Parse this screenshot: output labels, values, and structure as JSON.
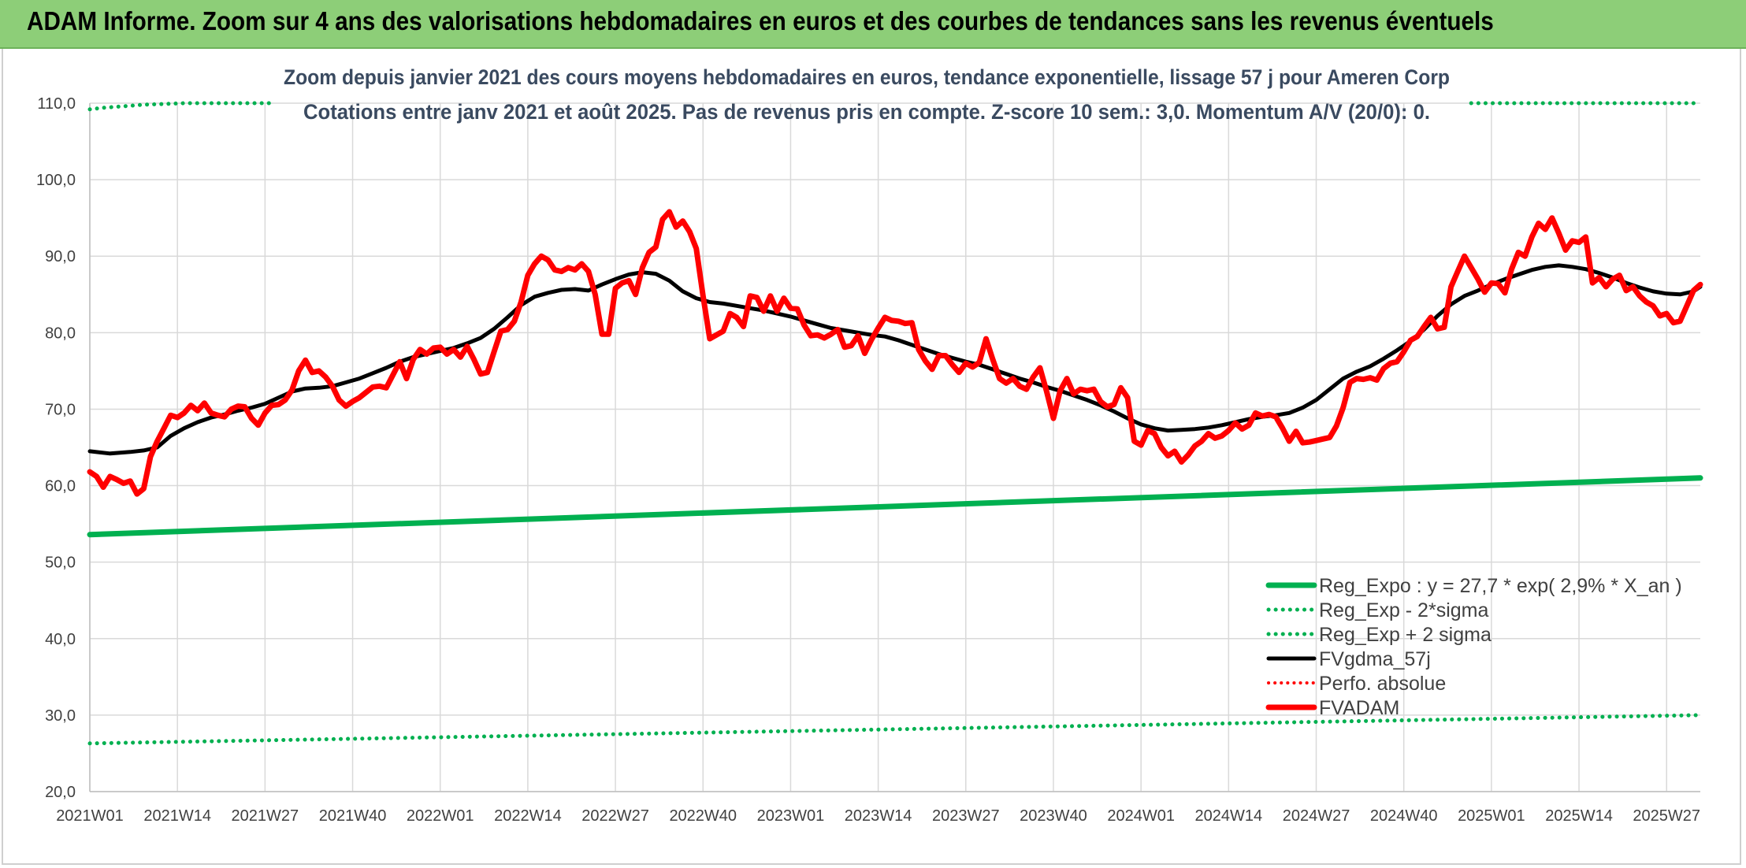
{
  "header": {
    "title": "ADAM Informe. Zoom sur 4 ans des valorisations hebdomadaires en euros et des courbes de tendances sans les revenus éventuels"
  },
  "chart_data": {
    "type": "line",
    "title": "Zoom depuis janvier 2021 des cours moyens hebdomadaires en euros, tendance exponentielle, lissage 57 j pour Ameren Corp",
    "subtitle": "Cotations entre janv 2021 et août 2025. Pas de revenus pris en compte. Z-score 10 sem.: 3,0. Momentum A/V (20/0): 0.",
    "x_tick_labels": [
      "2021W01",
      "2021W14",
      "2021W27",
      "2021W40",
      "2022W01",
      "2022W14",
      "2022W27",
      "2022W40",
      "2023W01",
      "2023W14",
      "2023W27",
      "2023W40",
      "2024W01",
      "2024W14",
      "2024W27",
      "2024W40",
      "2025W01",
      "2025W14",
      "2025W27"
    ],
    "x_tick_weeks": [
      0,
      13,
      26,
      39,
      52,
      65,
      78,
      91,
      104,
      117,
      130,
      143,
      156,
      169,
      182,
      195,
      208,
      221,
      234
    ],
    "y_tick_labels": [
      "20,0",
      "30,0",
      "40,0",
      "50,0",
      "60,0",
      "70,0",
      "80,0",
      "90,0",
      "100,0",
      "110,0"
    ],
    "ylim": [
      20,
      110
    ],
    "xlim_weeks": [
      0,
      239
    ],
    "grid": true,
    "legend_position": "bottom-right",
    "colors": {
      "reg_expo": "#00b050",
      "fvgdma": "#000000",
      "fvadam": "#ff0000",
      "grid": "#d9d9d9",
      "banner": "#8dce78"
    },
    "series": [
      {
        "name": "Reg_Expo : y = 27,7 * exp( 2,9% *  X_an )",
        "style": "solid",
        "x": [
          0,
          239
        ],
        "y": [
          53.6,
          61.0
        ]
      },
      {
        "name": "Reg_Exp - 2*sigma",
        "style": "dotted",
        "x": [
          0,
          239
        ],
        "y": [
          26.3,
          30.0
        ]
      },
      {
        "name": "Reg_Exp + 2 sigma",
        "style": "dotted",
        "x": [
          0,
          2,
          5,
          8,
          11,
          14,
          17,
          20,
          23,
          27
        ],
        "y": [
          109.2,
          109.4,
          109.6,
          109.8,
          109.9,
          110.0,
          110.0,
          110.0,
          110.0,
          110.0
        ],
        "x_right": [
          205,
          239
        ],
        "y_right": [
          110.0,
          110.0
        ]
      },
      {
        "name": "FVgdma_57j",
        "style": "solid",
        "x": [
          0,
          3,
          6,
          8,
          10,
          12,
          14,
          16,
          18,
          20,
          22,
          24,
          26,
          28,
          30,
          32,
          34,
          36,
          38,
          40,
          42,
          44,
          46,
          48,
          50,
          52,
          54,
          56,
          58,
          60,
          62,
          64,
          66,
          68,
          70,
          72,
          74,
          76,
          78,
          80,
          82,
          84,
          86,
          88,
          90,
          92,
          94,
          96,
          98,
          100,
          102,
          104,
          106,
          108,
          110,
          112,
          114,
          116,
          118,
          120,
          122,
          124,
          126,
          128,
          130,
          132,
          134,
          136,
          138,
          140,
          142,
          144,
          146,
          148,
          150,
          152,
          154,
          156,
          158,
          160,
          162,
          164,
          166,
          168,
          170,
          172,
          174,
          176,
          178,
          180,
          182,
          184,
          186,
          188,
          190,
          192,
          194,
          196,
          198,
          200,
          202,
          204,
          206,
          208,
          210,
          212,
          214,
          216,
          218,
          220,
          222,
          224,
          226,
          228,
          230,
          232,
          234,
          236,
          238,
          239
        ],
        "y": [
          64.5,
          64.2,
          64.4,
          64.6,
          65.0,
          66.5,
          67.5,
          68.3,
          68.9,
          69.3,
          69.8,
          70.2,
          70.7,
          71.5,
          72.3,
          72.7,
          72.8,
          73.0,
          73.5,
          74.0,
          74.7,
          75.4,
          76.2,
          76.8,
          77.2,
          77.6,
          78.0,
          78.6,
          79.3,
          80.5,
          82.0,
          83.6,
          84.7,
          85.2,
          85.6,
          85.7,
          85.5,
          86.3,
          87.0,
          87.6,
          87.9,
          87.7,
          86.8,
          85.4,
          84.5,
          84.0,
          83.8,
          83.5,
          83.2,
          82.9,
          82.5,
          82.1,
          81.6,
          81.1,
          80.6,
          80.3,
          80.0,
          79.7,
          79.5,
          79.0,
          78.4,
          77.8,
          77.2,
          76.7,
          76.2,
          75.8,
          75.2,
          74.6,
          74.0,
          73.5,
          72.9,
          72.4,
          71.8,
          71.2,
          70.5,
          69.7,
          68.8,
          68.0,
          67.5,
          67.2,
          67.3,
          67.4,
          67.6,
          67.9,
          68.3,
          68.7,
          69.0,
          69.2,
          69.5,
          70.2,
          71.2,
          72.6,
          74.0,
          74.9,
          75.6,
          76.6,
          77.7,
          78.9,
          80.4,
          82.2,
          83.7,
          84.8,
          85.5,
          86.3,
          87.0,
          87.6,
          88.2,
          88.6,
          88.8,
          88.6,
          88.3,
          87.8,
          87.2,
          86.5,
          85.9,
          85.4,
          85.1,
          85.0,
          85.4,
          86.0
        ]
      },
      {
        "name": "Perfo. absolue",
        "style": "dotted",
        "x": [],
        "y": []
      },
      {
        "name": "FVADAM",
        "style": "solid-thick",
        "x": [
          0,
          1,
          2,
          3,
          4,
          5,
          6,
          7,
          8,
          9,
          10,
          11,
          12,
          13,
          14,
          15,
          16,
          17,
          18,
          19,
          20,
          21,
          22,
          23,
          24,
          25,
          26,
          27,
          28,
          29,
          30,
          31,
          32,
          33,
          34,
          35,
          36,
          37,
          38,
          39,
          40,
          41,
          42,
          43,
          44,
          45,
          46,
          47,
          48,
          49,
          50,
          51,
          52,
          53,
          54,
          55,
          56,
          57,
          58,
          59,
          60,
          61,
          62,
          63,
          64,
          65,
          66,
          67,
          68,
          69,
          70,
          71,
          72,
          73,
          74,
          75,
          76,
          77,
          78,
          79,
          80,
          81,
          82,
          83,
          84,
          85,
          86,
          87,
          88,
          89,
          90,
          91,
          92,
          93,
          94,
          95,
          96,
          97,
          98,
          99,
          100,
          101,
          102,
          103,
          104,
          105,
          106,
          107,
          108,
          109,
          110,
          111,
          112,
          113,
          114,
          115,
          116,
          117,
          118,
          119,
          120,
          121,
          122,
          123,
          124,
          125,
          126,
          127,
          128,
          129,
          130,
          131,
          132,
          133,
          134,
          135,
          136,
          137,
          138,
          139,
          140,
          141,
          142,
          143,
          144,
          145,
          146,
          147,
          148,
          149,
          150,
          151,
          152,
          153,
          154,
          155,
          156,
          157,
          158,
          159,
          160,
          161,
          162,
          163,
          164,
          165,
          166,
          167,
          168,
          169,
          170,
          171,
          172,
          173,
          174,
          175,
          176,
          177,
          178,
          179,
          180,
          181,
          182,
          183,
          184,
          185,
          186,
          187,
          188,
          189,
          190,
          191,
          192,
          193,
          194,
          195,
          196,
          197,
          198,
          199,
          200,
          201,
          202,
          203,
          204,
          205,
          206,
          207,
          208,
          209,
          210,
          211,
          212,
          213,
          214,
          215,
          216,
          217,
          218,
          219,
          220,
          221,
          222,
          223,
          224,
          225,
          226,
          227,
          228,
          229,
          230,
          231,
          232,
          233,
          234,
          235,
          236,
          237,
          238,
          239
        ],
        "y": [
          61.8,
          61.2,
          59.8,
          61.2,
          60.8,
          60.3,
          60.6,
          58.9,
          59.6,
          63.8,
          65.8,
          67.5,
          69.2,
          68.9,
          69.5,
          70.5,
          69.8,
          70.8,
          69.5,
          69.2,
          69.0,
          70.0,
          70.4,
          70.3,
          68.8,
          67.9,
          69.5,
          70.5,
          70.6,
          71.2,
          72.5,
          75.0,
          76.4,
          74.8,
          75.0,
          74.2,
          73.0,
          71.2,
          70.4,
          71.0,
          71.5,
          72.2,
          72.9,
          73.0,
          72.8,
          74.5,
          76.2,
          74.0,
          76.5,
          77.8,
          77.2,
          78.0,
          78.1,
          77.2,
          77.8,
          76.8,
          78.2,
          76.5,
          74.6,
          74.8,
          77.5,
          80.2,
          80.4,
          81.5,
          84.0,
          87.5,
          89.0,
          90.0,
          89.5,
          88.2,
          88.0,
          88.5,
          88.2,
          89.0,
          88.0,
          85.0,
          79.8,
          79.8,
          85.8,
          86.5,
          86.8,
          85.0,
          88.5,
          90.5,
          91.2,
          94.8,
          95.8,
          93.8,
          94.6,
          93.2,
          91.0,
          84.8,
          79.2,
          79.7,
          80.2,
          82.5,
          82.0,
          80.8,
          84.8,
          84.6,
          82.8,
          84.8,
          82.8,
          84.5,
          83.2,
          83.1,
          81.0,
          79.6,
          79.7,
          79.3,
          79.8,
          80.4,
          78.1,
          78.3,
          79.6,
          77.3,
          79.1,
          80.6,
          82.0,
          81.6,
          81.5,
          81.2,
          81.3,
          77.8,
          76.3,
          75.2,
          77.0,
          77.0,
          75.8,
          74.8,
          76.0,
          75.5,
          76.1,
          79.2,
          76.5,
          74.0,
          73.4,
          74.0,
          73.0,
          72.6,
          74.2,
          75.4,
          72.3,
          68.8,
          72.4,
          74.0,
          72.0,
          72.6,
          72.4,
          72.6,
          71.0,
          70.3,
          70.6,
          72.8,
          71.5,
          65.8,
          65.3,
          67.2,
          66.8,
          65.0,
          63.9,
          64.5,
          63.1,
          64.0,
          65.2,
          65.8,
          66.8,
          66.2,
          66.5,
          67.2,
          68.2,
          67.4,
          67.9,
          69.5,
          69.1,
          69.3,
          69.0,
          67.5,
          65.8,
          67.1,
          65.6,
          65.7,
          65.9,
          66.1,
          66.3,
          67.8,
          70.2,
          73.5,
          74.0,
          73.9,
          74.1,
          73.8,
          75.3,
          76.0,
          76.2,
          77.5,
          79.0,
          79.5,
          80.8,
          82.0,
          80.5,
          80.7,
          86.0,
          88.0,
          90.0,
          88.5,
          87.0,
          85.3,
          86.5,
          86.4,
          85.2,
          88.3,
          90.5,
          90.0,
          92.5,
          94.3,
          93.5,
          95.0,
          93.0,
          90.8,
          92.0,
          91.8,
          92.5,
          86.5,
          87.2,
          86.0,
          87.0,
          87.5,
          85.5,
          86.0,
          84.8,
          84.0,
          83.5,
          82.2,
          82.5,
          81.3,
          81.5,
          83.5,
          85.5,
          86.3
        ]
      }
    ]
  }
}
